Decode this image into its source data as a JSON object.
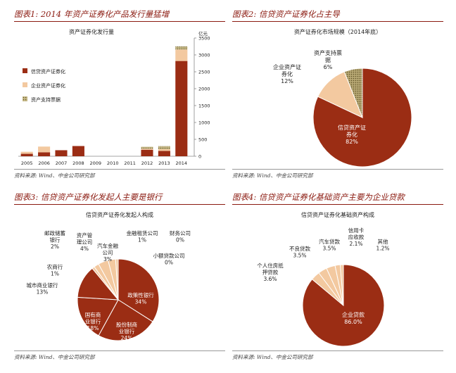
{
  "colors": {
    "accent": "#8b1a10",
    "slice_dark": "#9b2d14",
    "slice_peach": "#f3c9a0",
    "slice_olive": "#8a7a45",
    "slice_light": "#f5ddc4"
  },
  "panels": [
    {
      "title": "图表1: 2014 年资产证券化产品发行量猛增",
      "source": "资料来源: Wind、中金公司研究部"
    },
    {
      "title": "图表2: 信贷资产证券化占主导",
      "source": "资料来源: Wind、中金公司研究部"
    },
    {
      "title": "图表3: 信贷资产证券化发起人主要是银行",
      "source": "资料来源: Wind、中金公司研究部"
    },
    {
      "title": "图表4: 信贷资产证券化基础资产主要为企业贷款",
      "source": "资料来源: Wind、中金公司研究部"
    }
  ],
  "chart_data": [
    {
      "type": "bar",
      "title": "资产证券化发行量",
      "ylabel": "亿元",
      "ylim": [
        0,
        3500
      ],
      "yticks": [
        "0",
        "500",
        "1000",
        "1500",
        "2000",
        "2500",
        "3000",
        "3500"
      ],
      "categories": [
        "2005",
        "2006",
        "2007",
        "2008",
        "2009",
        "2010",
        "2011",
        "2012",
        "2013",
        "2014"
      ],
      "series": [
        {
          "name": "信贷资产证券化",
          "color": "#9b2d14",
          "values": [
            72,
            116,
            178,
            302,
            0,
            0,
            0,
            193,
            158,
            2820
          ]
        },
        {
          "name": "企业资产证券化",
          "color": "#f3c9a0",
          "values": [
            60,
            170,
            0,
            0,
            0,
            0,
            0,
            30,
            50,
            340
          ]
        },
        {
          "name": "资产支持票据",
          "color": "#8a7a45",
          "values": [
            0,
            0,
            0,
            0,
            0,
            0,
            0,
            57,
            90,
            90
          ]
        }
      ],
      "legend": "top-left"
    },
    {
      "type": "pie",
      "title": "资产证券化市场规模（2014年底）",
      "slices": [
        {
          "label": "信贷资产证券化",
          "value": 82,
          "pct": "82%",
          "color": "#9b2d14"
        },
        {
          "label": "企业资产证券化",
          "value": 12,
          "pct": "12%",
          "color": "#f3c9a0"
        },
        {
          "label": "资产支持票据",
          "value": 6,
          "pct": "6%",
          "color": "#8a7a45"
        }
      ]
    },
    {
      "type": "pie",
      "title": "信贷资产证券化发起人构成",
      "slices": [
        {
          "label": "政策性银行",
          "value": 34,
          "pct": "34%",
          "color": "#9b2d14"
        },
        {
          "label": "股份制商业银行",
          "value": 24,
          "pct": "24%",
          "color": "#9b2d14"
        },
        {
          "label": "国有商业银行",
          "value": 18,
          "pct": "18%",
          "color": "#9b2d14"
        },
        {
          "label": "城市商业银行",
          "value": 13,
          "pct": "13%",
          "color": "#9b2d14"
        },
        {
          "label": "农商行",
          "value": 1,
          "pct": "1%",
          "color": "#f3c9a0"
        },
        {
          "label": "邮政储蓄银行",
          "value": 2,
          "pct": "2%",
          "color": "#f3c9a0"
        },
        {
          "label": "资产管理公司",
          "value": 4,
          "pct": "4%",
          "color": "#f3c9a0"
        },
        {
          "label": "汽车金融公司",
          "value": 3,
          "pct": "3%",
          "color": "#f3c9a0"
        },
        {
          "label": "金融租赁公司",
          "value": 1,
          "pct": "1%",
          "color": "#f3c9a0"
        },
        {
          "label": "财务公司",
          "value": 0,
          "pct": "0%",
          "color": "#f3c9a0"
        },
        {
          "label": "小额贷款公司",
          "value": 0,
          "pct": "0%",
          "color": "#f3c9a0"
        }
      ]
    },
    {
      "type": "pie",
      "title": "信贷资产证券化基础资产构成",
      "slices": [
        {
          "label": "企业贷款",
          "value": 86.0,
          "pct": "86.0%",
          "color": "#9b2d14"
        },
        {
          "label": "个人住房抵押贷款",
          "value": 3.6,
          "pct": "3.6%",
          "color": "#f3c9a0"
        },
        {
          "label": "不良贷款",
          "value": 3.5,
          "pct": "3.5%",
          "color": "#f3c9a0"
        },
        {
          "label": "汽车贷款",
          "value": 3.5,
          "pct": "3.5%",
          "color": "#f3c9a0"
        },
        {
          "label": "信用卡应收款",
          "value": 2.1,
          "pct": "2.1%",
          "color": "#f3c9a0"
        },
        {
          "label": "其他",
          "value": 1.2,
          "pct": "1.2%",
          "color": "#f3c9a0"
        }
      ]
    }
  ]
}
